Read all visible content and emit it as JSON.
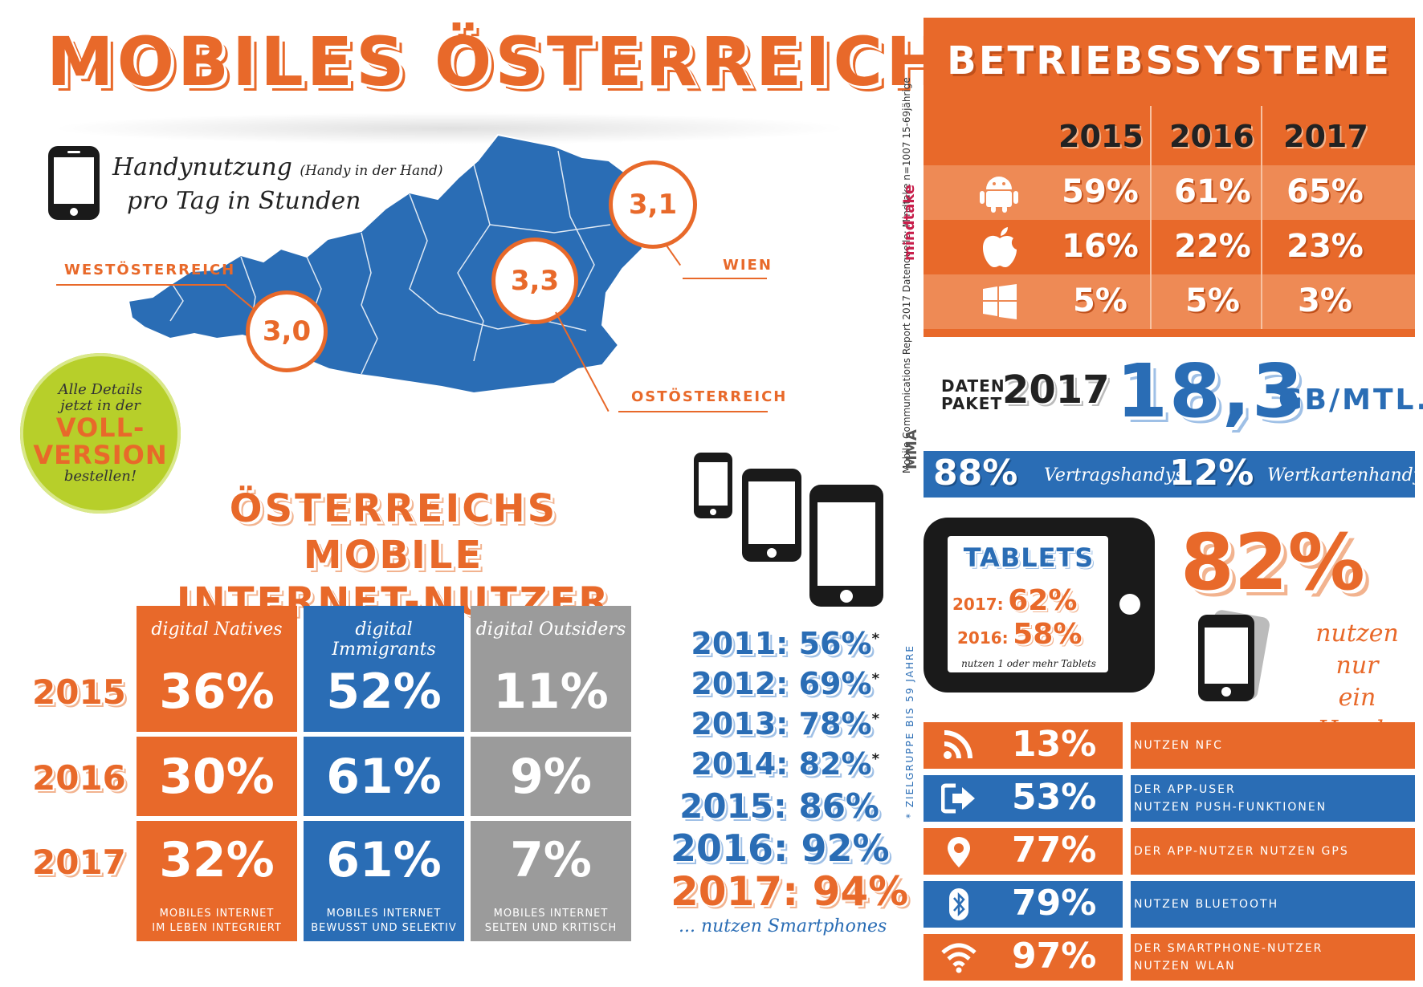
{
  "title": "MOBILES ÖSTERREICH",
  "handy_caption": {
    "line1": "Handynutzung",
    "note": "(Handy in der Hand)",
    "line2": "pro Tag in Stunden"
  },
  "regions": {
    "west": {
      "label": "WESTÖSTERREICH",
      "value": "3,0"
    },
    "ost": {
      "label": "OSTÖSTERREICH",
      "value": "3,3"
    },
    "wien": {
      "label": "WIEN",
      "value": "3,1"
    }
  },
  "badge": {
    "line1": "Alle Details",
    "line2": "jetzt in der",
    "line3": "VOLL-",
    "line4": "VERSION",
    "line5": "bestellen!"
  },
  "internet_users": {
    "title_line1": "ÖSTERREICHS MOBILE",
    "title_line2": "INTERNET-NUTZER",
    "columns": [
      "digital Natives",
      "digital Immigrants",
      "digital Outsiders"
    ],
    "years": [
      "2015",
      "2016",
      "2017"
    ],
    "rows": [
      [
        "36%",
        "52%",
        "11%"
      ],
      [
        "30%",
        "61%",
        "9%"
      ],
      [
        "32%",
        "61%",
        "7%"
      ]
    ],
    "footers": [
      [
        "MOBILES INTERNET",
        "IM LEBEN INTEGRIERT"
      ],
      [
        "MOBILES INTERNET",
        "BEWUSST UND SELEKTIV"
      ],
      [
        "MOBILES INTERNET",
        "SELTEN UND KRITISCH"
      ]
    ]
  },
  "smartphone_timeline": {
    "rows": [
      {
        "year": "2011:",
        "value": "56%",
        "star": "*"
      },
      {
        "year": "2012:",
        "value": "69%",
        "star": "*"
      },
      {
        "year": "2013:",
        "value": "78%",
        "star": "*"
      },
      {
        "year": "2014:",
        "value": "82%",
        "star": "*"
      },
      {
        "year": "2015:",
        "value": "86%",
        "star": ""
      },
      {
        "year": "2016:",
        "value": "92%",
        "star": ""
      },
      {
        "year": "2017:",
        "value": "94%",
        "star": ""
      }
    ],
    "caption": "... nutzen Smartphones"
  },
  "betriebssysteme": {
    "title": "BETRIEBSSYSTEME",
    "years": [
      "2015",
      "2016",
      "2017"
    ],
    "rows": [
      {
        "icon": "android-icon",
        "values": [
          "59%",
          "61%",
          "65%"
        ]
      },
      {
        "icon": "apple-icon",
        "values": [
          "16%",
          "22%",
          "23%"
        ]
      },
      {
        "icon": "windows-icon",
        "values": [
          "5%",
          "5%",
          "3%"
        ]
      }
    ]
  },
  "source": {
    "text": "Mobile Communications Report 2017    Datenquelle: Mindtake n=1007 15-69jährige",
    "mindtake": "mindtake",
    "mma": "MMA"
  },
  "datenpaket": {
    "label_line1": "DATEN",
    "label_line2": "PAKET",
    "year": "2017",
    "value": "18,3",
    "unit": "GB/MTL."
  },
  "vertrag": {
    "v1": "88%",
    "l1": "Vertragshandys",
    "v2": "12%",
    "l2": "Wertkartenhandys"
  },
  "tablets": {
    "title": "TABLETS",
    "line1_label": "2017:",
    "line1_value": "62%",
    "line2_label": "2016:",
    "line2_value": "58%",
    "footer": "nutzen 1 oder mehr Tablets"
  },
  "handy_only": {
    "value": "82%",
    "caption_line1": "nutzen nur",
    "caption_line2": "ein Handy"
  },
  "zielgruppe": "* ZIELGRUPPE BIS 59 JAHRE",
  "features": [
    {
      "icon": "nfc-icon",
      "value": "13%",
      "line1": "NUTZEN NFC",
      "line2": ""
    },
    {
      "icon": "push-icon",
      "value": "53%",
      "line1": "DER APP-USER",
      "line2": "NUTZEN PUSH-FUNKTIONEN"
    },
    {
      "icon": "gps-icon",
      "value": "77%",
      "line1": "DER APP-NUTZER NUTZEN GPS",
      "line2": ""
    },
    {
      "icon": "bluetooth-icon",
      "value": "79%",
      "line1": "NUTZEN BLUETOOTH",
      "line2": ""
    },
    {
      "icon": "wlan-icon",
      "value": "97%",
      "line1": "DER SMARTPHONE-NUTZER",
      "line2": "NUTZEN WLAN"
    }
  ],
  "colors": {
    "orange": "#e8692a",
    "blue": "#2a6db5",
    "grey": "#9b9b9b",
    "lime": "#b7cf2a",
    "black": "#1a1a1a"
  }
}
